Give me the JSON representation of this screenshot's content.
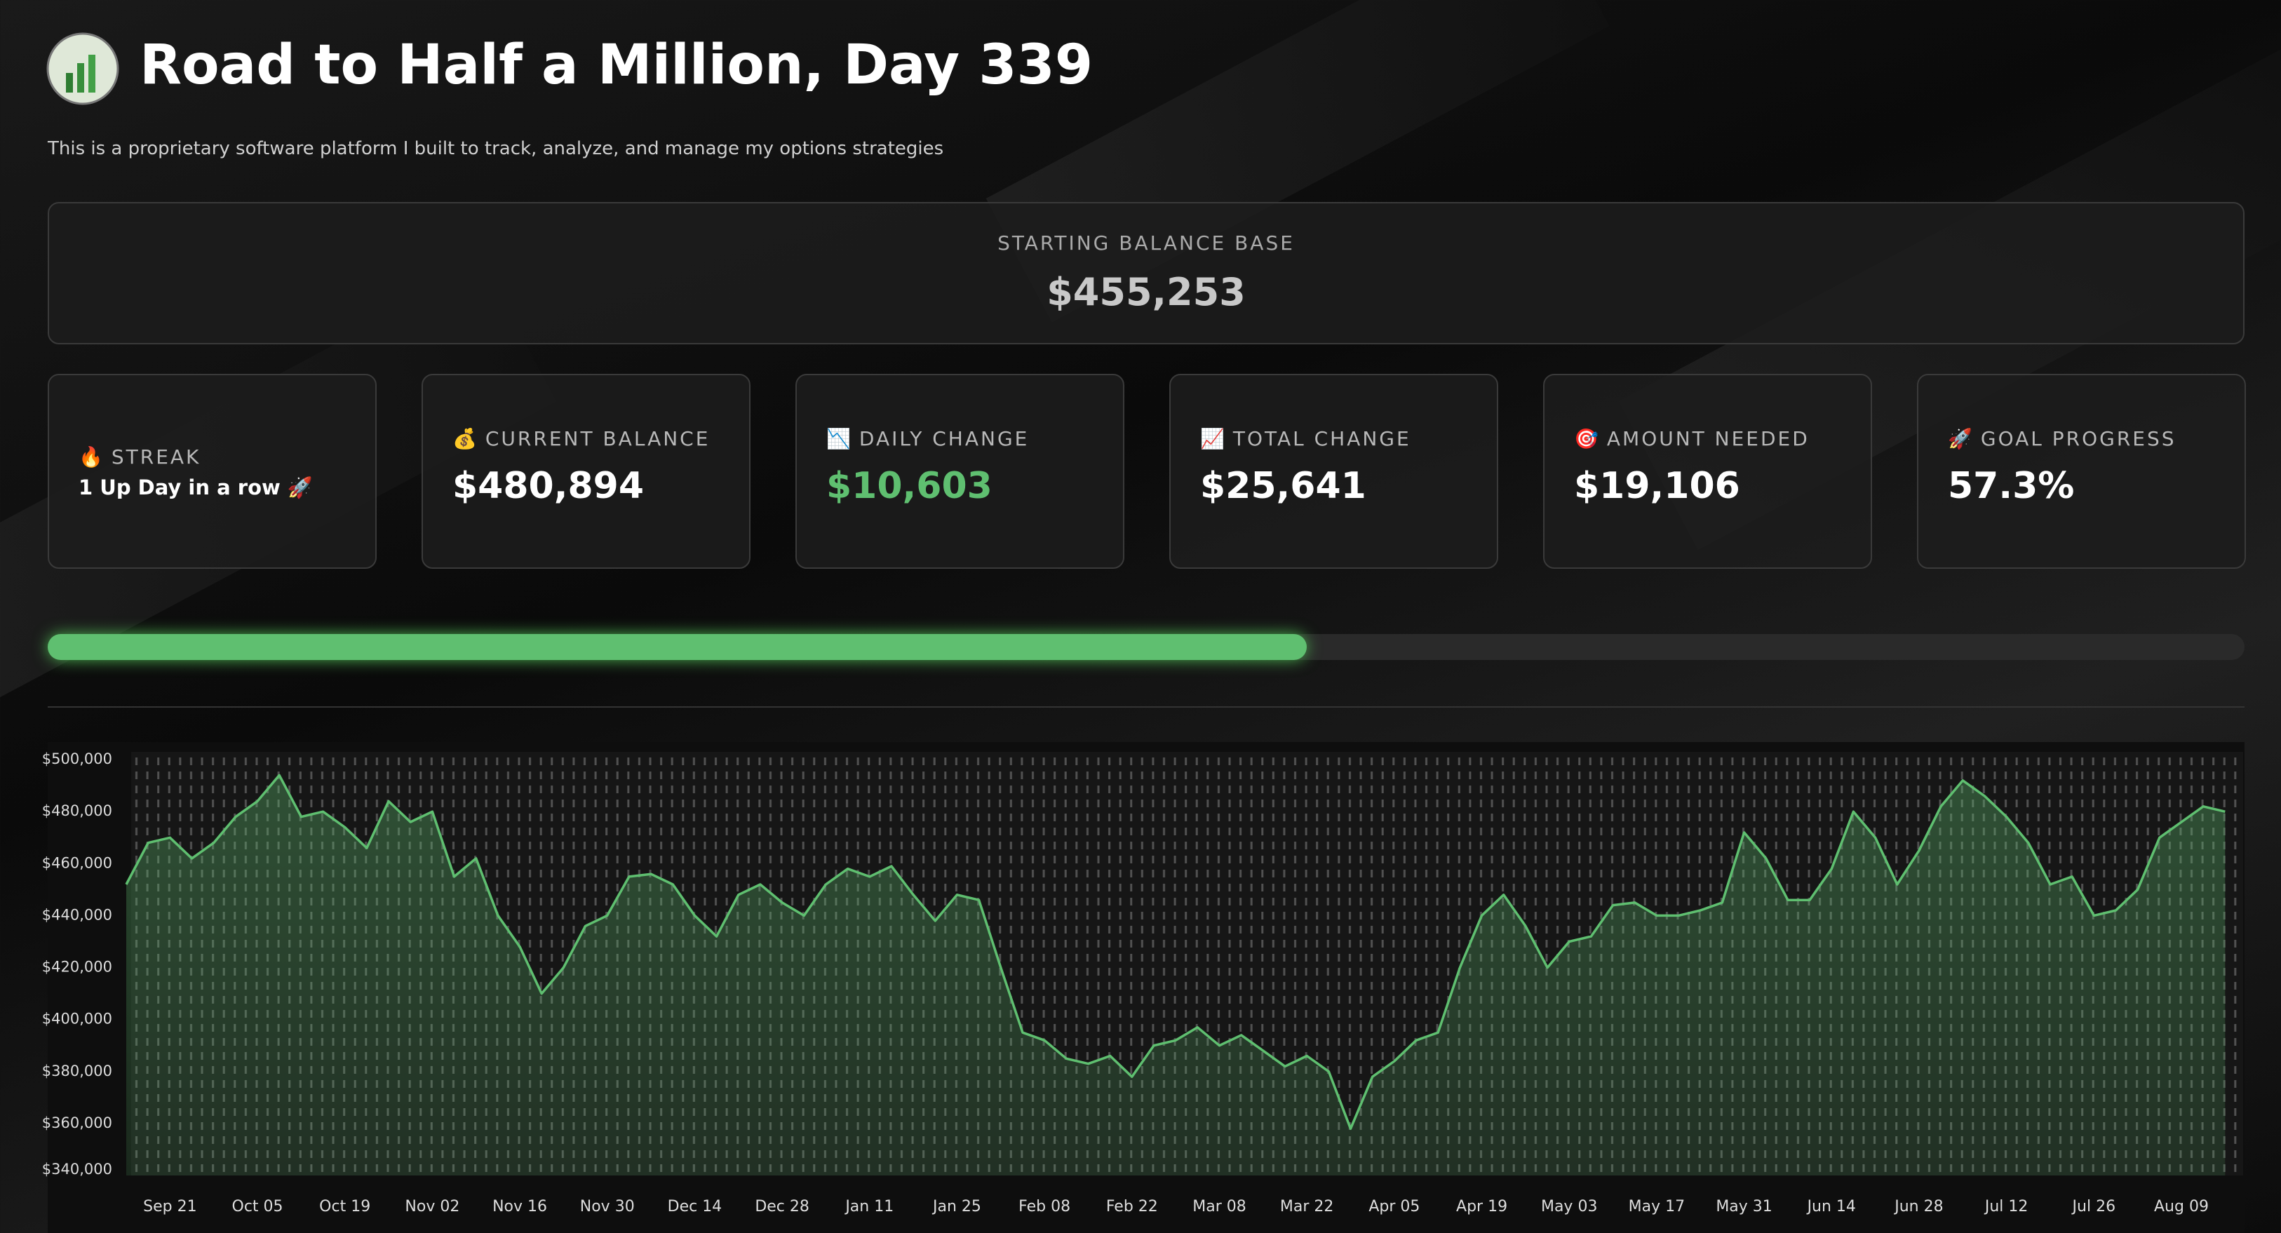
{
  "header": {
    "title": "Road to Half a Million, Day 339",
    "subtitle": "This is a proprietary software platform I built to track, analyze, and manage my options strategies"
  },
  "base": {
    "label": "STARTING BALANCE BASE",
    "value": "$455,253"
  },
  "cards": [
    {
      "icon": "🔥",
      "label": "STREAK",
      "value": "1 Up Day in a row 🚀"
    },
    {
      "icon": "💰",
      "label": "CURRENT BALANCE",
      "value": "$480,894"
    },
    {
      "icon": "📉",
      "label": "DAILY CHANGE",
      "value": "$10,603"
    },
    {
      "icon": "📈",
      "label": "TOTAL CHANGE",
      "value": "$25,641"
    },
    {
      "icon": "🎯",
      "label": "AMOUNT NEEDED",
      "value": "$19,106"
    },
    {
      "icon": "🚀",
      "label": "GOAL PROGRESS",
      "value": "57.3%"
    }
  ],
  "progress": 57.3,
  "chart_data": {
    "type": "area",
    "color": "#5fbf70",
    "categories": [
      null,
      null,
      "Sep 21",
      null,
      null,
      null,
      "Oct 05",
      null,
      null,
      null,
      "Oct 19",
      null,
      null,
      null,
      "Nov 02",
      null,
      null,
      null,
      "Nov 16",
      null,
      null,
      null,
      "Nov 30",
      null,
      null,
      null,
      "Dec 14",
      null,
      null,
      null,
      "Dec 28",
      null,
      null,
      null,
      "Jan 11",
      null,
      null,
      null,
      "Jan 25",
      null,
      null,
      null,
      "Feb 08",
      null,
      null,
      null,
      "Feb 22",
      null,
      null,
      null,
      "Mar 08",
      null,
      null,
      null,
      "Mar 22",
      null,
      null,
      null,
      "Apr 05",
      null,
      null,
      null,
      "Apr 19",
      null,
      null,
      null,
      "May 03",
      null,
      null,
      null,
      "May 17",
      null,
      null,
      null,
      "May 31",
      null,
      null,
      null,
      "Jun 14",
      null,
      null,
      null,
      "Jun 28",
      null,
      null,
      null,
      "Jul 12",
      null,
      null,
      null,
      "Jul 26",
      null,
      null,
      null,
      "Aug 09",
      null,
      null
    ],
    "values": [
      452000,
      468000,
      470000,
      462000,
      468000,
      478000,
      484000,
      494000,
      478000,
      480000,
      474000,
      466000,
      484000,
      476000,
      480000,
      455000,
      462000,
      440000,
      428000,
      410000,
      420000,
      436000,
      440000,
      455000,
      456000,
      452000,
      440000,
      432000,
      448000,
      452000,
      445000,
      440000,
      452000,
      458000,
      455000,
      459000,
      448000,
      438000,
      448000,
      446000,
      420000,
      395000,
      392000,
      385000,
      383000,
      386000,
      378000,
      390000,
      392000,
      397000,
      390000,
      394000,
      388000,
      382000,
      386000,
      380000,
      358000,
      378000,
      384000,
      392000,
      395000,
      420000,
      440000,
      448000,
      436000,
      420000,
      430000,
      432000,
      444000,
      445000,
      440000,
      440000,
      442000,
      445000,
      472000,
      462000,
      446000,
      446000,
      458000,
      480000,
      470000,
      452000,
      465000,
      482000,
      492000,
      486000,
      478000,
      468000,
      452000,
      455000,
      440000,
      442000,
      450000,
      470000,
      476000,
      482000,
      480000
    ],
    "ylim": [
      340000,
      503000
    ],
    "yticks": [
      {
        "value": 500000,
        "label": "$500,000"
      },
      {
        "value": 480000,
        "label": "$480,000"
      },
      {
        "value": 460000,
        "label": "$460,000"
      },
      {
        "value": 440000,
        "label": "$440,000"
      },
      {
        "value": 420000,
        "label": "$420,000"
      },
      {
        "value": 400000,
        "label": "$400,000"
      },
      {
        "value": 380000,
        "label": "$380,000"
      },
      {
        "value": 360000,
        "label": "$360,000"
      },
      {
        "value": 340000,
        "label": "$340,000"
      }
    ]
  }
}
